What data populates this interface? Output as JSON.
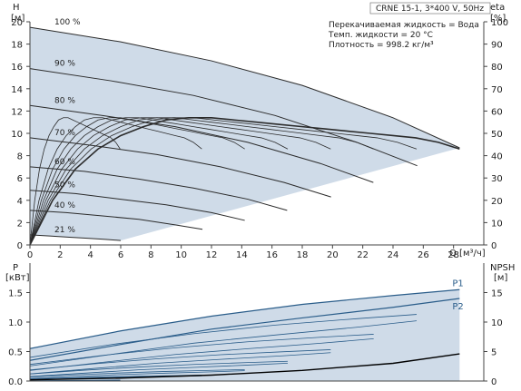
{
  "chart_data": [
    {
      "type": "line",
      "header": "CRNE 15-1, 3*400 V, 50Hz",
      "info_lines": [
        "Перекачиваемая жидкость = Вода",
        "Темп. жидкости = 20 °C",
        "Плотность = 998.2 кг/м³"
      ],
      "ylabel": "H",
      "yunit": "[м]",
      "y2label": "eta",
      "y2unit": "[%]",
      "xlabel": "Q [м³/ч]",
      "xlim": [
        0,
        30
      ],
      "ylim": [
        0,
        20
      ],
      "y2lim": [
        0,
        100
      ],
      "xticks": [
        "0",
        "2",
        "4",
        "6",
        "8",
        "10",
        "12",
        "14",
        "16",
        "18",
        "20",
        "22",
        "24",
        "26",
        "28"
      ],
      "yticks": [
        "0",
        "2",
        "4",
        "6",
        "8",
        "10",
        "12",
        "14",
        "16",
        "18",
        "20"
      ],
      "y2ticks": [
        "0",
        "10",
        "20",
        "30",
        "40",
        "50",
        "60",
        "70",
        "80",
        "90",
        "100"
      ],
      "grid": false,
      "speed_curves": [
        {
          "label": "100 %",
          "x": [
            0,
            6,
            12,
            18,
            24,
            28.4
          ],
          "y": [
            19.5,
            18.2,
            16.5,
            14.3,
            11.4,
            8.7
          ]
        },
        {
          "label": "90 %",
          "x": [
            0,
            5.4,
            10.8,
            16.2,
            21.6,
            25.6
          ],
          "y": [
            15.8,
            14.7,
            13.4,
            11.6,
            9.2,
            7.1
          ]
        },
        {
          "label": "80 %",
          "x": [
            0,
            4.8,
            9.6,
            14.4,
            19.2,
            22.7
          ],
          "y": [
            12.5,
            11.6,
            10.6,
            9.2,
            7.3,
            5.6
          ]
        },
        {
          "label": "70 %",
          "x": [
            0,
            4.2,
            8.4,
            12.6,
            16.8,
            19.9
          ],
          "y": [
            9.6,
            8.9,
            8.1,
            7.0,
            5.6,
            4.3
          ]
        },
        {
          "label": "60 %",
          "x": [
            0,
            3.6,
            7.2,
            10.8,
            14.4,
            17.0
          ],
          "y": [
            7.0,
            6.6,
            5.9,
            5.1,
            4.1,
            3.1
          ]
        },
        {
          "label": "50 %",
          "x": [
            0,
            3,
            6,
            9,
            12,
            14.2
          ],
          "y": [
            4.9,
            4.6,
            4.1,
            3.6,
            2.9,
            2.2
          ]
        },
        {
          "label": "40 %",
          "x": [
            0,
            2.4,
            4.8,
            7.2,
            9.6,
            11.4
          ],
          "y": [
            3.1,
            2.9,
            2.6,
            2.3,
            1.8,
            1.4
          ]
        },
        {
          "label": "21 %",
          "x": [
            0,
            1.3,
            2.5,
            3.8,
            5.0,
            6.0
          ],
          "y": [
            0.9,
            0.8,
            0.7,
            0.6,
            0.5,
            0.4
          ]
        }
      ],
      "efficiency_curves": [
        {
          "x": [
            0,
            1.5,
            3,
            4.5,
            6,
            7.5,
            9,
            10.5,
            12,
            13.5,
            15,
            16.5,
            18,
            19.5,
            21,
            22.5,
            24,
            25.5,
            27,
            28.4
          ],
          "y2": [
            0,
            20,
            34,
            43,
            49,
            53,
            56,
            57,
            57,
            56,
            55,
            54,
            53,
            52,
            51,
            50,
            49,
            48,
            46,
            43
          ]
        }
      ],
      "annotation_speed_labels": [
        "100 %",
        "90 %",
        "80 %",
        "70 %",
        "60 %",
        "50 %",
        "40 %",
        "21 %"
      ],
      "shade_color": "#cfdbe8",
      "curve_color": "#2b2b2b"
    },
    {
      "type": "line",
      "ylabel": "P",
      "yunit": "[кВт]",
      "y2label": "NPSH",
      "y2unit": "[м]",
      "xlim": [
        0,
        30
      ],
      "ylim": [
        0,
        2.0
      ],
      "y2lim": [
        0,
        20
      ],
      "yticks": [
        "0.0",
        "0.5",
        "1.0",
        "1.5"
      ],
      "y2ticks": [
        "0",
        "5",
        "10",
        "15"
      ],
      "series": [
        {
          "name": "P1",
          "x": [
            0,
            6,
            12,
            18,
            24,
            28.4
          ],
          "y": [
            0.55,
            0.85,
            1.1,
            1.3,
            1.45,
            1.55
          ]
        },
        {
          "name": "P2",
          "x": [
            0,
            6,
            12,
            18,
            24,
            28.4
          ],
          "y": [
            0.35,
            0.62,
            0.88,
            1.07,
            1.25,
            1.4
          ]
        }
      ],
      "npsh": {
        "x": [
          0,
          6,
          12,
          18,
          24,
          28.4
        ],
        "y2": [
          0.2,
          0.5,
          1.0,
          1.8,
          3.0,
          4.6
        ]
      },
      "line_color": "#2a5d8a",
      "npsh_color": "#000000"
    }
  ]
}
